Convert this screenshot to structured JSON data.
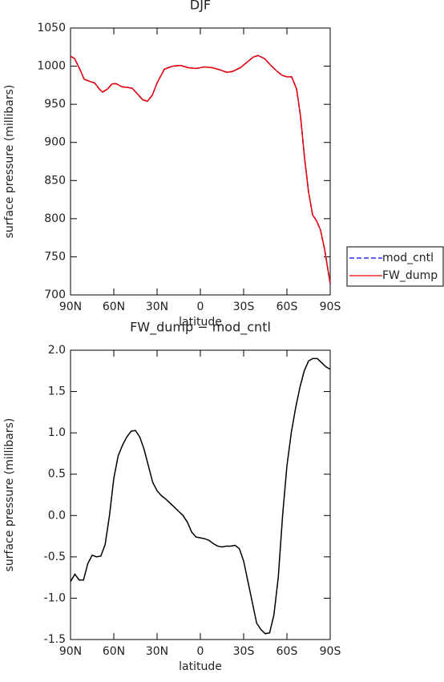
{
  "chart_data": [
    {
      "type": "line",
      "title": "DJF",
      "xlabel": "latitude",
      "ylabel": "surface pressure (millibars)",
      "x": [
        90,
        87.2,
        83.3,
        80.6,
        76.7,
        73.3,
        70,
        67.8,
        64.4,
        61.1,
        58.3,
        54.4,
        50,
        47.2,
        43.3,
        40,
        36.7,
        33.3,
        30,
        25,
        19.4,
        13.9,
        8.3,
        2.8,
        -2.8,
        -8.3,
        -13.9,
        -18.3,
        -22.2,
        -27.8,
        -32.2,
        -36.7,
        -40,
        -44.4,
        -48.9,
        -53.3,
        -56.7,
        -60,
        -63.3,
        -66.7,
        -69.4,
        -72.2,
        -75,
        -77.8,
        -80.6,
        -83.3,
        -86.1,
        -90
      ],
      "series": [
        {
          "name": "mod_cntl",
          "color": "#0000ee",
          "style": "dashed",
          "values": [
            1013,
            1010,
            995,
            983,
            980,
            978,
            970,
            966,
            970,
            977,
            977,
            973,
            972,
            971,
            963,
            956,
            954,
            962,
            978,
            996,
            1000,
            1001,
            998,
            997,
            999,
            998,
            995,
            992,
            993,
            998,
            1005,
            1012,
            1014,
            1010,
            1001,
            993,
            988,
            986,
            986,
            970,
            935,
            880,
            835,
            805,
            797,
            785,
            760,
            715
          ]
        },
        {
          "name": "FW_dump",
          "color": "#ee0000",
          "style": "solid",
          "values": [
            1013,
            1010,
            995,
            983,
            980,
            978,
            970,
            966,
            970,
            977,
            977,
            973,
            972,
            971,
            963,
            956,
            954,
            962,
            978,
            996,
            1000,
            1001,
            998,
            997,
            999,
            998,
            995,
            992,
            993,
            998,
            1005,
            1012,
            1014,
            1010,
            1001,
            993,
            988,
            986,
            986,
            970,
            935,
            880,
            835,
            805,
            797,
            785,
            760,
            715
          ]
        }
      ],
      "legend": "right",
      "xlim": [
        90,
        -90
      ],
      "xticks": [
        {
          "value": 90,
          "label": "90N"
        },
        {
          "value": 60,
          "label": "60N"
        },
        {
          "value": 30,
          "label": "30N"
        },
        0,
        {
          "value": -30,
          "label": "30S"
        },
        {
          "value": -60,
          "label": "60S"
        },
        {
          "value": -90,
          "label": "90S"
        }
      ],
      "ylim": [
        700,
        1050
      ],
      "yticks": [
        700,
        750,
        800,
        850,
        900,
        950,
        1000,
        1050
      ]
    },
    {
      "type": "line",
      "title": "FW_dump − mod_cntl",
      "xlabel": "latitude",
      "ylabel": "surface pressure (millibars)",
      "x": [
        90,
        87,
        84,
        81,
        78,
        75,
        72,
        69,
        66,
        63,
        60,
        57,
        54,
        51,
        48,
        45,
        42,
        39,
        36,
        33,
        30,
        27,
        24,
        21,
        18,
        15,
        12,
        9,
        6,
        3,
        0,
        -3,
        -6,
        -9,
        -12,
        -15,
        -18,
        -21,
        -24,
        -27,
        -30,
        -33,
        -36,
        -39,
        -42,
        -45,
        -48,
        -51,
        -54,
        -57,
        -60,
        -63,
        -66,
        -69,
        -72,
        -75,
        -78,
        -81,
        -84,
        -87,
        -90
      ],
      "values": [
        -0.8,
        -0.71,
        -0.78,
        -0.78,
        -0.58,
        -0.48,
        -0.5,
        -0.49,
        -0.35,
        0.0,
        0.45,
        0.72,
        0.85,
        0.95,
        1.02,
        1.03,
        0.95,
        0.8,
        0.6,
        0.4,
        0.3,
        0.24,
        0.2,
        0.15,
        0.1,
        0.05,
        0.0,
        -0.08,
        -0.2,
        -0.26,
        -0.27,
        -0.28,
        -0.3,
        -0.34,
        -0.37,
        -0.38,
        -0.37,
        -0.37,
        -0.36,
        -0.4,
        -0.55,
        -0.8,
        -1.05,
        -1.3,
        -1.38,
        -1.43,
        -1.42,
        -1.2,
        -0.75,
        0.0,
        0.6,
        1.0,
        1.3,
        1.55,
        1.75,
        1.87,
        1.9,
        1.9,
        1.85,
        1.8,
        1.77
      ],
      "color": "#000000",
      "xlim": [
        90,
        -90
      ],
      "xticks": [
        {
          "value": 90,
          "label": "90N"
        },
        {
          "value": 60,
          "label": "60N"
        },
        {
          "value": 30,
          "label": "30N"
        },
        0,
        {
          "value": -30,
          "label": "30S"
        },
        {
          "value": -60,
          "label": "60S"
        },
        {
          "value": -90,
          "label": "90S"
        }
      ],
      "ylim": [
        -1.5,
        2.0
      ],
      "yticks": [
        -1.5,
        {
          "value": -1,
          "label": "-1.0"
        },
        -0.5,
        {
          "value": 0,
          "label": "0.0"
        },
        0.5,
        {
          "value": 1,
          "label": "1.0"
        },
        1.5,
        {
          "value": 2,
          "label": "2.0"
        }
      ]
    }
  ]
}
